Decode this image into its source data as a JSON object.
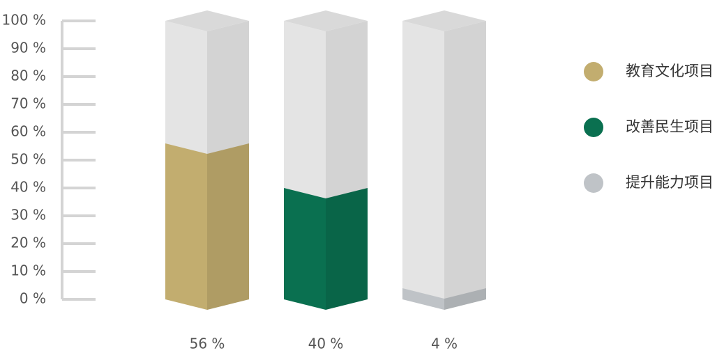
{
  "chart_data": {
    "type": "bar",
    "categories": [
      "教育文化项目",
      "改善民生项目",
      "提升能力项目"
    ],
    "values": [
      56,
      40,
      4
    ],
    "value_labels": [
      "56 %",
      "40 %",
      "4 %"
    ],
    "colors": [
      "#c2ad6f",
      "#0a7050",
      "#bfc3c7"
    ],
    "ylim": [
      0,
      100
    ],
    "yticks": [
      {
        "value": 0,
        "label": "0 %"
      },
      {
        "value": 10,
        "label": "10 %"
      },
      {
        "value": 20,
        "label": "20 %"
      },
      {
        "value": 30,
        "label": "30 %"
      },
      {
        "value": 40,
        "label": "40 %"
      },
      {
        "value": 50,
        "label": "50 %"
      },
      {
        "value": 60,
        "label": "60 %"
      },
      {
        "value": 70,
        "label": "70 %"
      },
      {
        "value": 80,
        "label": "80 %"
      },
      {
        "value": 90,
        "label": "90 %"
      },
      {
        "value": 100,
        "label": "100 %"
      }
    ],
    "grid": false,
    "legend": "right"
  }
}
